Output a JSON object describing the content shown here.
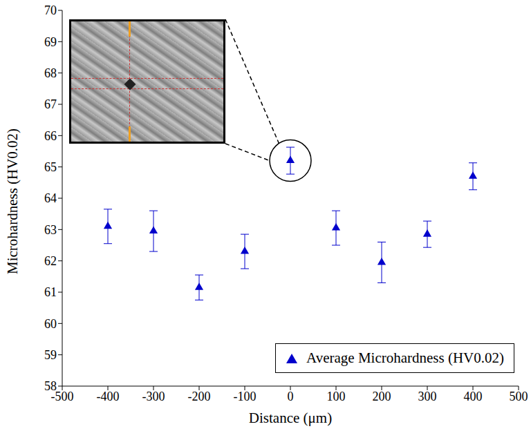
{
  "chart_data": {
    "type": "scatter",
    "x_label": "Distance (μm)",
    "y_label": "Microhardness (HV0.02)",
    "x": [
      -400,
      -300,
      -200,
      -100,
      0,
      100,
      200,
      300,
      400
    ],
    "series": [
      {
        "name": "Average Microhardness (HV0.02)",
        "color": "#0000cc",
        "marker": "triangle",
        "values": [
          63.1,
          62.95,
          61.15,
          62.3,
          65.2,
          63.05,
          61.95,
          62.85,
          64.7
        ],
        "errors": [
          0.55,
          0.65,
          0.4,
          0.55,
          0.43,
          0.55,
          0.65,
          0.42,
          0.43
        ]
      }
    ],
    "xlim": [
      -500,
      500
    ],
    "xticks": [
      -500,
      -400,
      -300,
      -200,
      -100,
      0,
      100,
      200,
      300,
      400,
      500
    ],
    "ylim": [
      58,
      70
    ],
    "yticks": [
      58,
      59,
      60,
      61,
      62,
      63,
      64,
      65,
      66,
      67,
      68,
      69,
      70
    ],
    "grid": false,
    "legend": "lower right"
  }
}
